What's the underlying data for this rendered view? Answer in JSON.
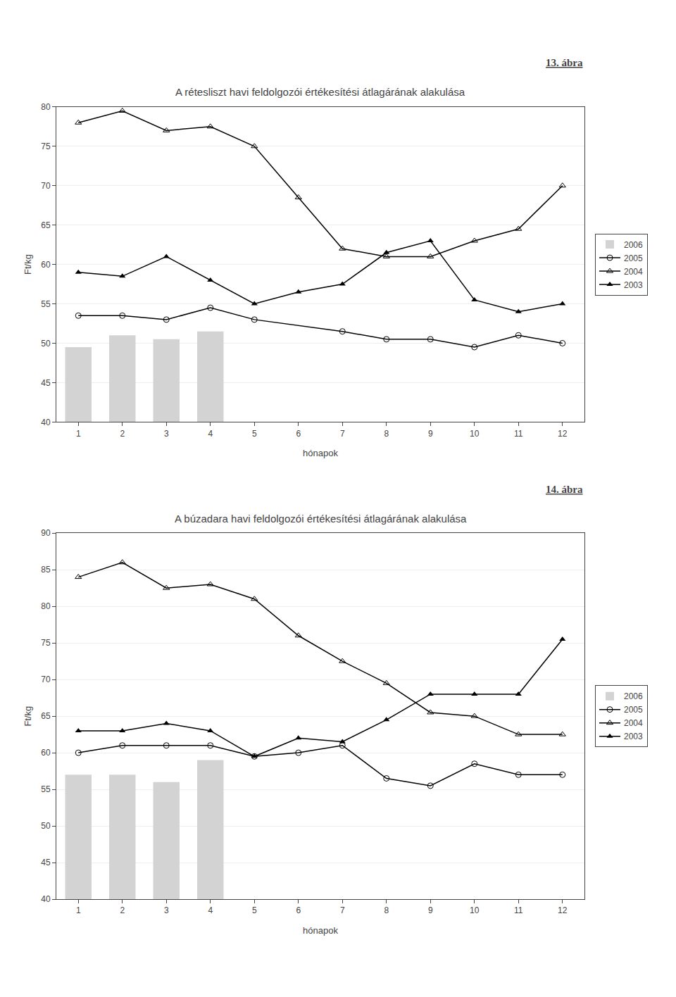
{
  "chart_data": [
    {
      "type": "line",
      "title": "A rétesliszt havi feldolgozói értékesítési átlagárának alakulása",
      "ylabel": "Ft/kg",
      "xlabel": "hónapok",
      "annotations": [
        "13. ábra"
      ],
      "x": [
        1,
        2,
        3,
        4,
        5,
        6,
        7,
        8,
        9,
        10,
        11,
        12
      ],
      "xlim": [
        0.5,
        12.5
      ],
      "xticks": [
        1,
        2,
        3,
        4,
        5,
        6,
        7,
        8,
        9,
        10,
        11,
        12
      ],
      "ylim": [
        40,
        80
      ],
      "yticks": [
        40,
        45,
        50,
        55,
        60,
        65,
        70,
        75,
        80
      ],
      "grid": true,
      "legend": "right",
      "series": [
        {
          "name": "2006",
          "type": "bar",
          "color": "#d3d3d3",
          "values": [
            49.5,
            51.0,
            50.5,
            51.5,
            null,
            null,
            null,
            null,
            null,
            null,
            null,
            null
          ]
        },
        {
          "name": "2005",
          "type": "line",
          "color": "#000000",
          "marker": "circle-open",
          "values": [
            53.5,
            53.5,
            53.0,
            54.5,
            53.0,
            null,
            51.5,
            50.5,
            50.5,
            49.5,
            51.0,
            50.0
          ]
        },
        {
          "name": "2004",
          "type": "line",
          "color": "#000000",
          "marker": "triangle-up-open",
          "values": [
            78.0,
            79.5,
            77.0,
            77.5,
            75.0,
            68.5,
            62.0,
            61.0,
            61.0,
            63.0,
            64.5,
            70.0
          ]
        },
        {
          "name": "2003",
          "type": "line",
          "color": "#000000",
          "marker": "triangle-up",
          "values": [
            59.0,
            58.5,
            61.0,
            58.0,
            55.0,
            56.5,
            57.5,
            61.5,
            63.0,
            55.5,
            54.0,
            55.0
          ]
        }
      ]
    },
    {
      "type": "line",
      "title": "A búzadara havi feldolgozói értékesítési átlagárának alakulása",
      "ylabel": "Ft/kg",
      "xlabel": "hónapok",
      "annotations": [
        "14. ábra"
      ],
      "x": [
        1,
        2,
        3,
        4,
        5,
        6,
        7,
        8,
        9,
        10,
        11,
        12
      ],
      "xlim": [
        0.5,
        12.5
      ],
      "xticks": [
        1,
        2,
        3,
        4,
        5,
        6,
        7,
        8,
        9,
        10,
        11,
        12
      ],
      "ylim": [
        40,
        90
      ],
      "yticks": [
        40,
        45,
        50,
        55,
        60,
        65,
        70,
        75,
        80,
        85,
        90
      ],
      "grid": true,
      "legend": "right",
      "series": [
        {
          "name": "2006",
          "type": "bar",
          "color": "#d3d3d3",
          "values": [
            57.0,
            57.0,
            56.0,
            59.0,
            null,
            null,
            null,
            null,
            null,
            null,
            null,
            null
          ]
        },
        {
          "name": "2005",
          "type": "line",
          "color": "#000000",
          "marker": "circle-open",
          "values": [
            60.0,
            61.0,
            61.0,
            61.0,
            59.5,
            60.0,
            61.0,
            56.5,
            55.5,
            58.5,
            57.0,
            57.0
          ]
        },
        {
          "name": "2004",
          "type": "line",
          "color": "#000000",
          "marker": "triangle-up-open",
          "values": [
            84.0,
            86.0,
            82.5,
            83.0,
            81.0,
            76.0,
            72.5,
            69.5,
            65.5,
            65.0,
            62.5,
            62.5
          ]
        },
        {
          "name": "2003",
          "type": "line",
          "color": "#000000",
          "marker": "triangle-up",
          "values": [
            63.0,
            63.0,
            64.0,
            63.0,
            59.5,
            62.0,
            61.5,
            64.5,
            68.0,
            68.0,
            68.0,
            75.5
          ]
        }
      ]
    }
  ]
}
